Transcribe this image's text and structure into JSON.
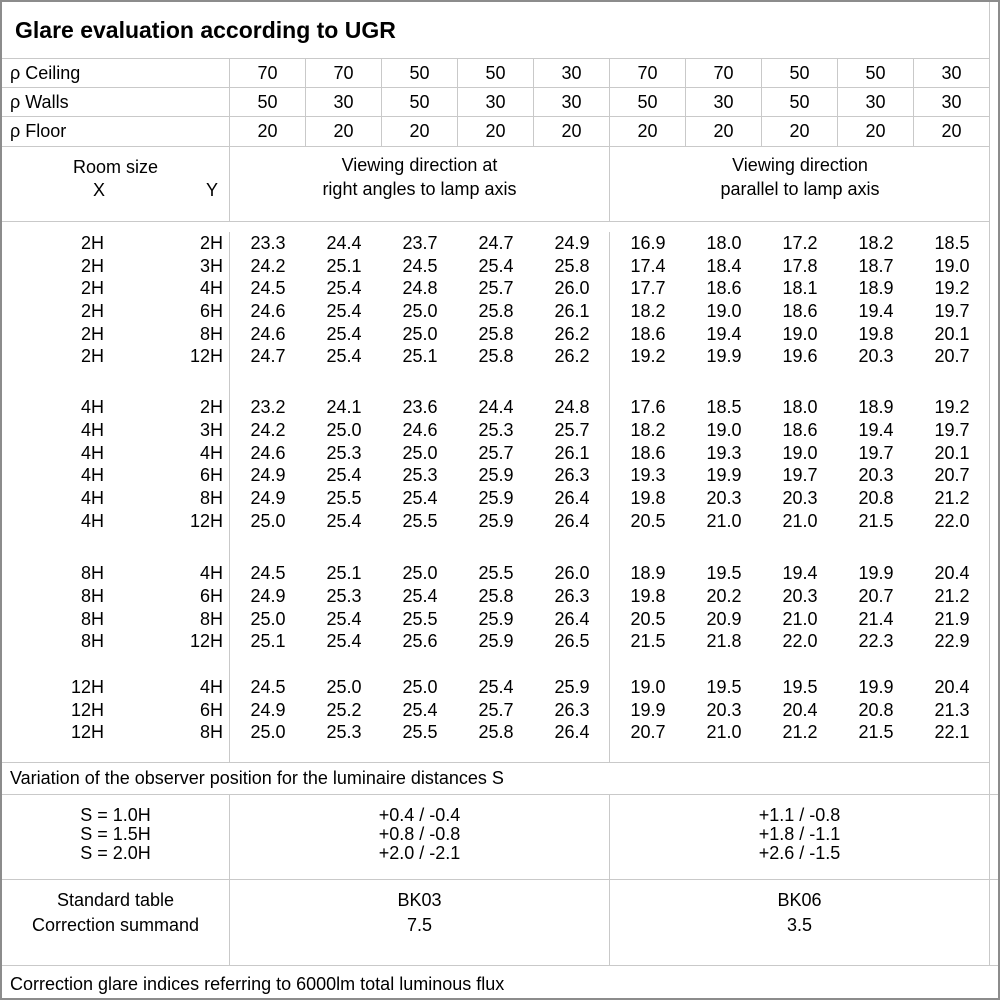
{
  "title": "Glare evaluation according to UGR",
  "reflectance_rows": [
    {
      "label": "ρ Ceiling",
      "values": [
        "70",
        "70",
        "50",
        "50",
        "30",
        "70",
        "70",
        "50",
        "50",
        "30"
      ]
    },
    {
      "label": "ρ Walls",
      "values": [
        "50",
        "30",
        "50",
        "30",
        "30",
        "50",
        "30",
        "50",
        "30",
        "30"
      ]
    },
    {
      "label": "ρ Floor",
      "values": [
        "20",
        "20",
        "20",
        "20",
        "20",
        "20",
        "20",
        "20",
        "20",
        "20"
      ]
    }
  ],
  "header": {
    "room_size_label": "Room size",
    "x_label": "X",
    "y_label": "Y",
    "right_angles_line1": "Viewing direction at",
    "right_angles_line2": "right angles to lamp axis",
    "parallel_line1": "Viewing direction",
    "parallel_line2": "parallel to lamp axis"
  },
  "ugr_blocks": [
    {
      "rows": [
        {
          "x": "2H",
          "y": "2H",
          "values": [
            "23.3",
            "24.4",
            "23.7",
            "24.7",
            "24.9",
            "16.9",
            "18.0",
            "17.2",
            "18.2",
            "18.5"
          ]
        },
        {
          "x": "2H",
          "y": "3H",
          "values": [
            "24.2",
            "25.1",
            "24.5",
            "25.4",
            "25.8",
            "17.4",
            "18.4",
            "17.8",
            "18.7",
            "19.0"
          ]
        },
        {
          "x": "2H",
          "y": "4H",
          "values": [
            "24.5",
            "25.4",
            "24.8",
            "25.7",
            "26.0",
            "17.7",
            "18.6",
            "18.1",
            "18.9",
            "19.2"
          ]
        },
        {
          "x": "2H",
          "y": "6H",
          "values": [
            "24.6",
            "25.4",
            "25.0",
            "25.8",
            "26.1",
            "18.2",
            "19.0",
            "18.6",
            "19.4",
            "19.7"
          ]
        },
        {
          "x": "2H",
          "y": "8H",
          "values": [
            "24.6",
            "25.4",
            "25.0",
            "25.8",
            "26.2",
            "18.6",
            "19.4",
            "19.0",
            "19.8",
            "20.1"
          ]
        },
        {
          "x": "2H",
          "y": "12H",
          "values": [
            "24.7",
            "25.4",
            "25.1",
            "25.8",
            "26.2",
            "19.2",
            "19.9",
            "19.6",
            "20.3",
            "20.7"
          ]
        }
      ]
    },
    {
      "rows": [
        {
          "x": "4H",
          "y": "2H",
          "values": [
            "23.2",
            "24.1",
            "23.6",
            "24.4",
            "24.8",
            "17.6",
            "18.5",
            "18.0",
            "18.9",
            "19.2"
          ]
        },
        {
          "x": "4H",
          "y": "3H",
          "values": [
            "24.2",
            "25.0",
            "24.6",
            "25.3",
            "25.7",
            "18.2",
            "19.0",
            "18.6",
            "19.4",
            "19.7"
          ]
        },
        {
          "x": "4H",
          "y": "4H",
          "values": [
            "24.6",
            "25.3",
            "25.0",
            "25.7",
            "26.1",
            "18.6",
            "19.3",
            "19.0",
            "19.7",
            "20.1"
          ]
        },
        {
          "x": "4H",
          "y": "6H",
          "values": [
            "24.9",
            "25.4",
            "25.3",
            "25.9",
            "26.3",
            "19.3",
            "19.9",
            "19.7",
            "20.3",
            "20.7"
          ]
        },
        {
          "x": "4H",
          "y": "8H",
          "values": [
            "24.9",
            "25.5",
            "25.4",
            "25.9",
            "26.4",
            "19.8",
            "20.3",
            "20.3",
            "20.8",
            "21.2"
          ]
        },
        {
          "x": "4H",
          "y": "12H",
          "values": [
            "25.0",
            "25.4",
            "25.5",
            "25.9",
            "26.4",
            "20.5",
            "21.0",
            "21.0",
            "21.5",
            "22.0"
          ]
        }
      ]
    },
    {
      "rows": [
        {
          "x": "8H",
          "y": "4H",
          "values": [
            "24.5",
            "25.1",
            "25.0",
            "25.5",
            "26.0",
            "18.9",
            "19.5",
            "19.4",
            "19.9",
            "20.4"
          ]
        },
        {
          "x": "8H",
          "y": "6H",
          "values": [
            "24.9",
            "25.3",
            "25.4",
            "25.8",
            "26.3",
            "19.8",
            "20.2",
            "20.3",
            "20.7",
            "21.2"
          ]
        },
        {
          "x": "8H",
          "y": "8H",
          "values": [
            "25.0",
            "25.4",
            "25.5",
            "25.9",
            "26.4",
            "20.5",
            "20.9",
            "21.0",
            "21.4",
            "21.9"
          ]
        },
        {
          "x": "8H",
          "y": "12H",
          "values": [
            "25.1",
            "25.4",
            "25.6",
            "25.9",
            "26.5",
            "21.5",
            "21.8",
            "22.0",
            "22.3",
            "22.9"
          ]
        }
      ]
    },
    {
      "rows": [
        {
          "x": "12H",
          "y": "4H",
          "values": [
            "24.5",
            "25.0",
            "25.0",
            "25.4",
            "25.9",
            "19.0",
            "19.5",
            "19.5",
            "19.9",
            "20.4"
          ]
        },
        {
          "x": "12H",
          "y": "6H",
          "values": [
            "24.9",
            "25.2",
            "25.4",
            "25.7",
            "26.3",
            "19.9",
            "20.3",
            "20.4",
            "20.8",
            "21.3"
          ]
        },
        {
          "x": "12H",
          "y": "8H",
          "values": [
            "25.0",
            "25.3",
            "25.5",
            "25.8",
            "26.4",
            "20.7",
            "21.0",
            "21.2",
            "21.5",
            "22.1"
          ]
        }
      ]
    }
  ],
  "variation_note": "Variation of the observer position for the luminaire distances S",
  "spacing_section": {
    "rows": [
      {
        "label": "S = 1.0H",
        "right_angles": "+0.4 / -0.4",
        "parallel": "+1.1 / -0.8"
      },
      {
        "label": "S = 1.5H",
        "right_angles": "+0.8 / -0.8",
        "parallel": "+1.8 / -1.1"
      },
      {
        "label": "S = 2.0H",
        "right_angles": "+2.0 / -2.1",
        "parallel": "+2.6 / -1.5"
      }
    ]
  },
  "standard_section": {
    "rows": [
      {
        "label": "Standard table",
        "right_angles": "BK03",
        "parallel": "BK06"
      },
      {
        "label": "Correction summand",
        "right_angles": "7.5",
        "parallel": "3.5"
      }
    ]
  },
  "footer_note": "Correction glare indices referring to 6000lm total luminous flux",
  "colors": {
    "background": "#ffffff",
    "text": "#000000",
    "grid_line": "#c9c9c9",
    "outer_border": "#8c8c8c"
  }
}
